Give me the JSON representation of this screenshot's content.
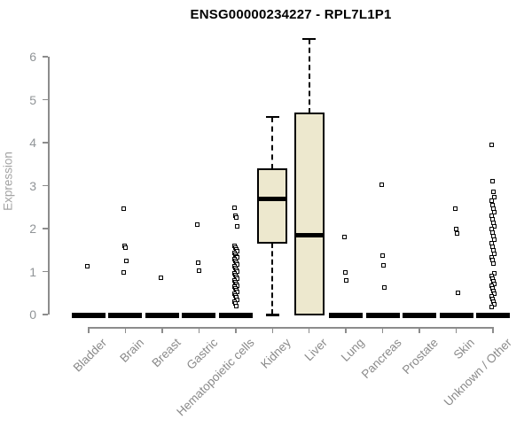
{
  "chart_data": {
    "type": "boxplot",
    "title": "ENSG00000234227 - RPL7L1P1",
    "ylabel": "Expression",
    "xlabel": "",
    "ylim": [
      0,
      6.45
    ],
    "yticks": [
      0,
      1,
      2,
      3,
      4,
      5,
      6
    ],
    "grid": false,
    "legend": false,
    "categories": [
      "Bladder",
      "Brain",
      "Breast",
      "Gastric",
      "Hematopoietic cells",
      "Kidney",
      "Liver",
      "Lung",
      "Pancreas",
      "Prostate",
      "Skin",
      "Unknown / Other"
    ],
    "boxes": [
      {
        "category": "Bladder",
        "min": 0,
        "q1": 0,
        "median": 0,
        "q3": 0,
        "max": 0,
        "outliers": [
          1.12
        ]
      },
      {
        "category": "Brain",
        "min": 0,
        "q1": 0,
        "median": 0,
        "q3": 0,
        "max": 0,
        "outliers": [
          2.46,
          1.6,
          1.55,
          1.25,
          0.98
        ]
      },
      {
        "category": "Breast",
        "min": 0,
        "q1": 0,
        "median": 0,
        "q3": 0,
        "max": 0,
        "outliers": [
          0.86
        ]
      },
      {
        "category": "Gastric",
        "min": 0,
        "q1": 0,
        "median": 0,
        "q3": 0,
        "max": 0,
        "outliers": [
          2.1,
          1.2,
          1.02
        ]
      },
      {
        "category": "Hematopoietic cells",
        "min": 0,
        "q1": 0,
        "median": 0,
        "q3": 0,
        "max": 0,
        "outliers": [
          2.48,
          2.3,
          2.26,
          2.06,
          1.6,
          1.56,
          1.52,
          1.48,
          1.44,
          1.4,
          1.36,
          1.32,
          1.28,
          1.24,
          1.2,
          1.16,
          1.12,
          1.08,
          1.04,
          1.0,
          0.96,
          0.92,
          0.88,
          0.84,
          0.8,
          0.76,
          0.72,
          0.68,
          0.64,
          0.6,
          0.56,
          0.52,
          0.48,
          0.44,
          0.4,
          0.35,
          0.3,
          0.25,
          0.2
        ]
      },
      {
        "category": "Kidney",
        "min": 0,
        "q1": 1.68,
        "median": 2.7,
        "q3": 3.38,
        "max": 4.6,
        "outliers": []
      },
      {
        "category": "Liver",
        "min": 0,
        "q1": 0,
        "median": 1.85,
        "q3": 4.68,
        "max": 6.42,
        "outliers": []
      },
      {
        "category": "Lung",
        "min": 0,
        "q1": 0,
        "median": 0,
        "q3": 0,
        "max": 0,
        "outliers": [
          1.8,
          0.97,
          0.8
        ]
      },
      {
        "category": "Pancreas",
        "min": 0,
        "q1": 0,
        "median": 0,
        "q3": 0,
        "max": 0,
        "outliers": [
          3.02,
          1.38,
          1.15,
          0.62
        ]
      },
      {
        "category": "Prostate",
        "min": 0,
        "q1": 0,
        "median": 0,
        "q3": 0,
        "max": 0,
        "outliers": []
      },
      {
        "category": "Skin",
        "min": 0,
        "q1": 0,
        "median": 0,
        "q3": 0,
        "max": 0,
        "outliers": [
          2.46,
          1.98,
          1.88,
          0.5
        ]
      },
      {
        "category": "Unknown / Other",
        "min": 0,
        "q1": 0,
        "median": 0,
        "q3": 0,
        "max": 0,
        "outliers": [
          3.95,
          3.1,
          2.85,
          2.74,
          2.64,
          2.54,
          2.46,
          2.38,
          2.3,
          2.22,
          2.14,
          2.06,
          1.98,
          1.9,
          1.82,
          1.75,
          1.66,
          1.58,
          1.5,
          1.42,
          1.34,
          1.26,
          1.18,
          0.96,
          0.9,
          0.84,
          0.78,
          0.72,
          0.66,
          0.6,
          0.54,
          0.48,
          0.42,
          0.36,
          0.3,
          0.24,
          0.18
        ]
      }
    ],
    "colors": {
      "background": "#ffffff",
      "box_fill": "#EDE8CE",
      "box_stroke": "#000000",
      "median": "#000000",
      "outlier_stroke": "#000000",
      "axis": "#8c8c8c",
      "tick_label": "#909497",
      "category_label": "#8a8a8a",
      "title": "#000000",
      "ylabel": "#a3a3a3"
    }
  }
}
